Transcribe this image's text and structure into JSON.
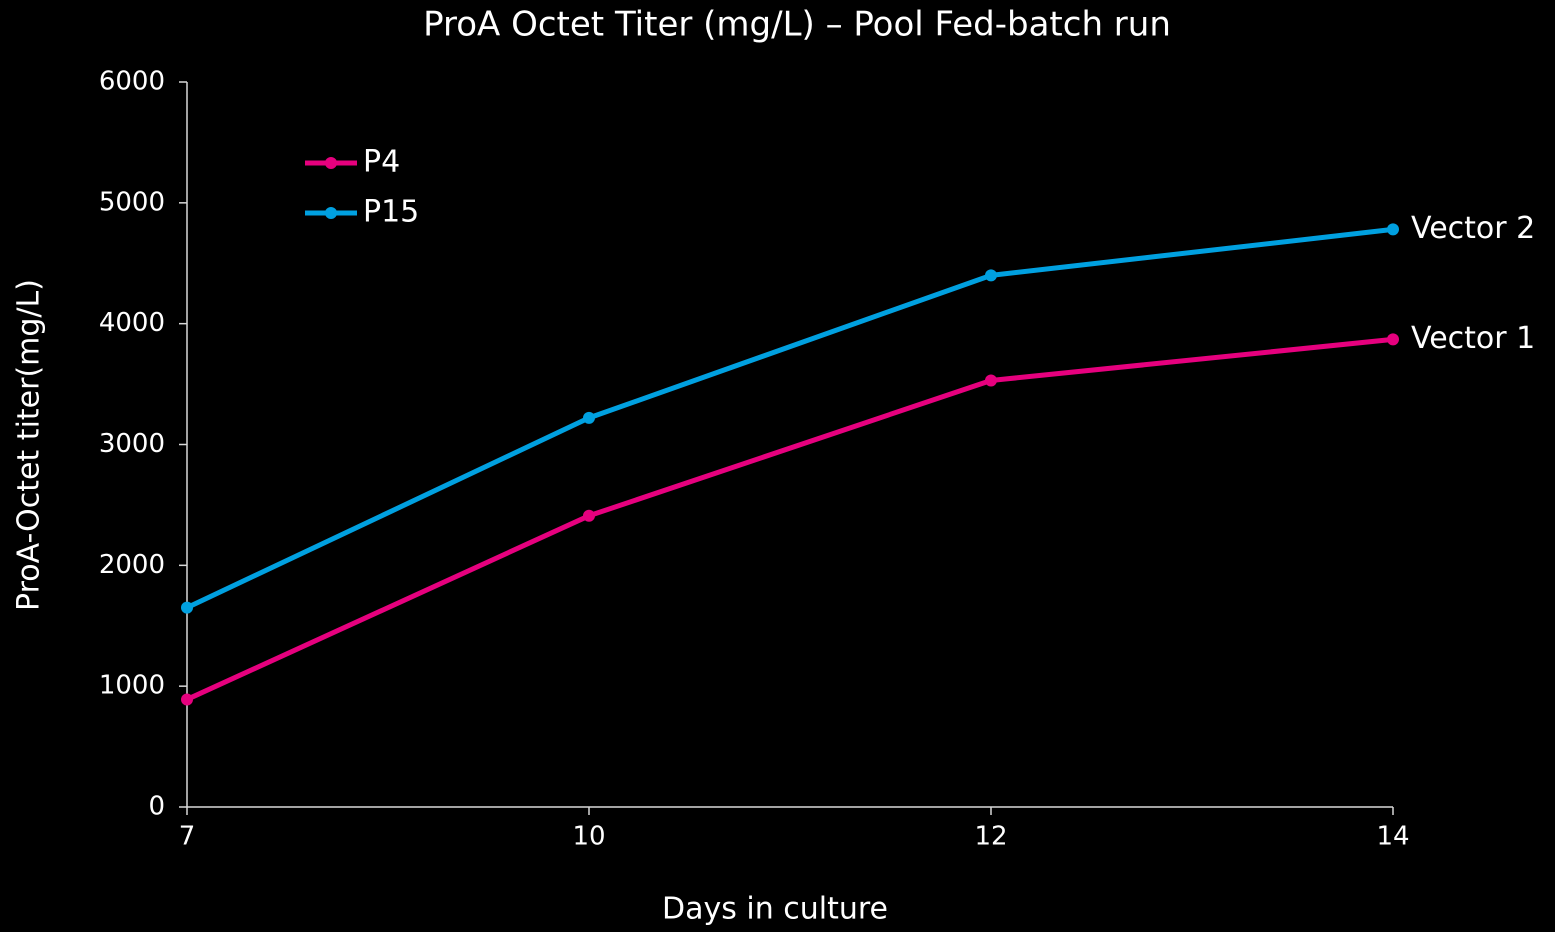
{
  "chart_data": {
    "type": "line",
    "title": "ProA Octet Titer (mg/L) – Pool Fed-batch run",
    "x_label": "Days in culture",
    "y_label": "ProA-Octet titer(mg/L)",
    "categories": [
      "7",
      "10",
      "12",
      "14"
    ],
    "series": [
      {
        "name": "P4",
        "color": "#e6007e",
        "values": [
          890,
          2410,
          3530,
          3870
        ],
        "end_label": "Vector 1"
      },
      {
        "name": "P15",
        "color": "#00a0e0",
        "values": [
          1650,
          3220,
          4400,
          4780
        ],
        "end_label": "Vector 2"
      }
    ],
    "ylim": [
      0,
      6000
    ],
    "yticks": [
      0,
      1000,
      2000,
      3000,
      4000,
      5000,
      6000
    ],
    "grid": false,
    "legend": "upper-left"
  }
}
